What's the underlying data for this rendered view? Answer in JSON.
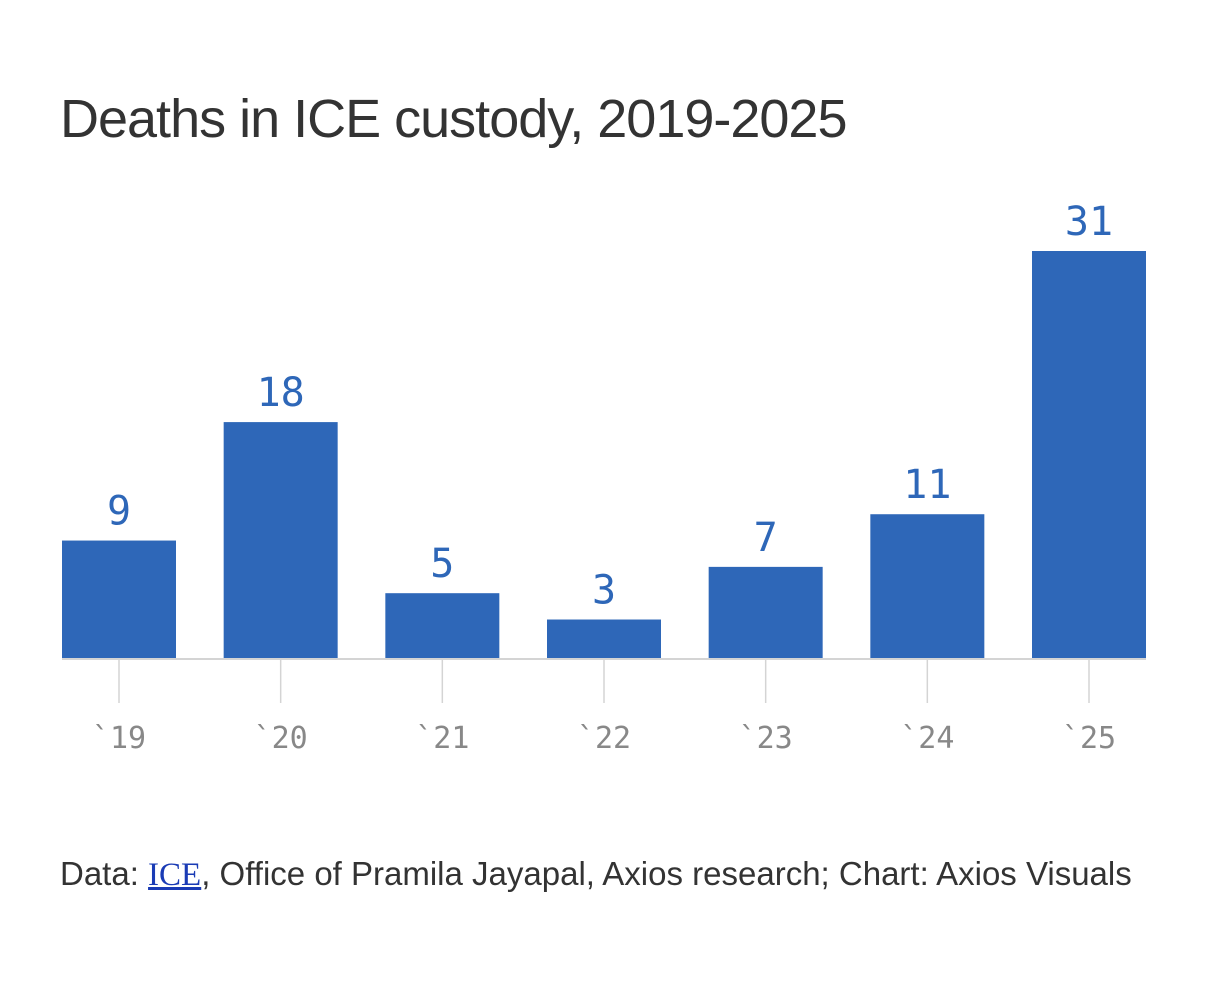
{
  "chart_data": {
    "type": "bar",
    "title": "Deaths in ICE custody, 2019-2025",
    "categories": [
      "`19",
      "`20",
      "`21",
      "`22",
      "`23",
      "`24",
      "`25"
    ],
    "values": [
      9,
      18,
      5,
      3,
      7,
      11,
      31
    ],
    "xlabel": "",
    "ylabel": "",
    "ylim": [
      0,
      31
    ],
    "grid": false,
    "legend": "none",
    "colors": {
      "bar": "#2e67b8",
      "value_label": "#2e67b8",
      "tick_label": "#888888",
      "axis": "#d4d4d4"
    }
  },
  "source": {
    "prefix": "Data: ",
    "link_text": "ICE",
    "suffix": ", Office of Pramila Jayapal, Axios research; Chart: Axios Visuals"
  }
}
